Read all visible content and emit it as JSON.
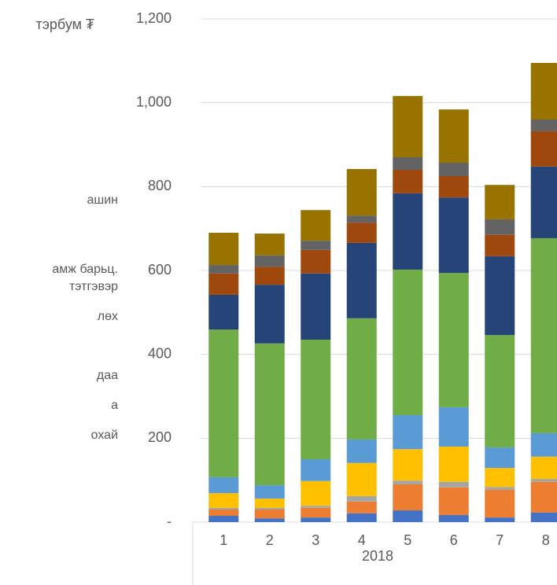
{
  "chart_data": {
    "type": "stacked_bar",
    "unit_label": "тэрбум ₮",
    "legend_text": [
      "ашин",
      "амж барьц.",
      "тэтгэвэр",
      "лөх",
      "даа",
      "а",
      "охай"
    ],
    "categories": [
      "1",
      "2",
      "3",
      "4",
      "5",
      "6",
      "7",
      "8"
    ],
    "group_label": "2018",
    "ylim": [
      0,
      1200
    ],
    "yticks": [
      {
        "value": 0,
        "label": "-"
      },
      200,
      400,
      600,
      800,
      {
        "value": 1000,
        "label": "1,000"
      },
      {
        "value": 1200,
        "label": "1,200"
      }
    ],
    "grid": true,
    "series": [
      {
        "color": "#4472c4",
        "values": [
          15,
          9,
          11,
          21,
          28,
          17,
          11,
          23
        ]
      },
      {
        "color": "#ed7d31",
        "values": [
          15,
          21,
          23,
          28,
          62,
          66,
          66,
          73
        ]
      },
      {
        "color": "#a5a5a5",
        "values": [
          4,
          4,
          5,
          13,
          9,
          13,
          7,
          7
        ]
      },
      {
        "color": "#ffc000",
        "values": [
          35,
          22,
          59,
          79,
          75,
          84,
          45,
          53
        ]
      },
      {
        "color": "#5b9bd5",
        "values": [
          38,
          32,
          52,
          56,
          81,
          94,
          49,
          56
        ]
      },
      {
        "color": "#70ad47",
        "values": [
          352,
          338,
          285,
          289,
          347,
          320,
          268,
          465
        ]
      },
      {
        "color": "#264478",
        "values": [
          83,
          140,
          158,
          180,
          182,
          180,
          188,
          171
        ]
      },
      {
        "color": "#9e480e",
        "values": [
          51,
          43,
          56,
          48,
          56,
          51,
          51,
          84
        ]
      },
      {
        "color": "#636363",
        "values": [
          20,
          27,
          22,
          17,
          30,
          32,
          37,
          28
        ]
      },
      {
        "color": "#997300",
        "values": [
          77,
          52,
          73,
          111,
          146,
          127,
          82,
          135
        ]
      }
    ]
  }
}
